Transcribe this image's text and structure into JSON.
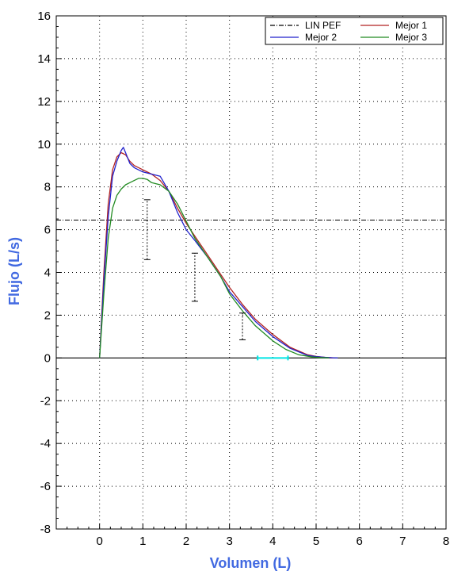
{
  "chart_data": {
    "type": "line",
    "title": "",
    "xlabel": "Volumen (L)",
    "ylabel": "Flujo (L/s)",
    "xlim": [
      -1,
      8
    ],
    "ylim": [
      -8,
      16
    ],
    "x_ticks": [
      0,
      1,
      2,
      3,
      4,
      5,
      6,
      7,
      8
    ],
    "y_ticks": [
      -8,
      -6,
      -4,
      -2,
      0,
      2,
      4,
      6,
      8,
      10,
      12,
      14,
      16
    ],
    "grid": true,
    "legend_position": "top-right",
    "colors": {
      "axis_title": "#4169e1",
      "grid": "#000000",
      "mejor1": "#b22222",
      "mejor2": "#2222cc",
      "mejor3": "#228b22",
      "lin_pef": "#000000",
      "error_bar": "#000000",
      "range_marker": "#00e5e5"
    },
    "series": [
      {
        "name": "LIN PEF",
        "style": "dash-dot",
        "x": [
          -1,
          8
        ],
        "y": [
          6.45,
          6.45
        ]
      },
      {
        "name": "Mejor 1",
        "x": [
          0.0,
          0.05,
          0.1,
          0.2,
          0.3,
          0.4,
          0.5,
          0.6,
          0.7,
          0.8,
          1.0,
          1.2,
          1.4,
          1.6,
          1.8,
          2.0,
          2.2,
          2.5,
          2.8,
          3.0,
          3.3,
          3.6,
          4.0,
          4.4,
          4.8,
          5.0,
          5.2,
          5.4
        ],
        "y": [
          0.0,
          2.0,
          4.0,
          7.2,
          8.8,
          9.4,
          9.6,
          9.5,
          9.2,
          9.0,
          8.8,
          8.6,
          8.3,
          7.8,
          7.0,
          6.3,
          5.7,
          4.8,
          3.9,
          3.3,
          2.5,
          1.8,
          1.1,
          0.5,
          0.15,
          0.07,
          0.03,
          0.0
        ]
      },
      {
        "name": "Mejor 2",
        "x": [
          0.0,
          0.05,
          0.1,
          0.2,
          0.3,
          0.4,
          0.5,
          0.55,
          0.6,
          0.7,
          0.8,
          1.0,
          1.2,
          1.4,
          1.6,
          1.8,
          2.0,
          2.2,
          2.5,
          2.8,
          3.0,
          3.3,
          3.6,
          4.0,
          4.4,
          4.8,
          5.0,
          5.2,
          5.4,
          5.5
        ],
        "y": [
          0.0,
          1.8,
          3.6,
          6.6,
          8.5,
          9.2,
          9.7,
          9.85,
          9.6,
          9.1,
          8.9,
          8.7,
          8.6,
          8.5,
          7.8,
          6.8,
          6.0,
          5.5,
          4.7,
          3.8,
          3.1,
          2.4,
          1.7,
          1.0,
          0.45,
          0.12,
          0.06,
          0.03,
          0.01,
          0.0
        ]
      },
      {
        "name": "Mejor 3",
        "x": [
          0.0,
          0.05,
          0.1,
          0.2,
          0.3,
          0.4,
          0.5,
          0.6,
          0.7,
          0.8,
          0.9,
          1.0,
          1.1,
          1.2,
          1.4,
          1.6,
          1.8,
          2.0,
          2.2,
          2.5,
          2.8,
          3.0,
          3.3,
          3.6,
          4.0,
          4.3,
          4.6,
          4.9,
          5.1,
          5.3
        ],
        "y": [
          0.0,
          1.5,
          3.0,
          5.6,
          7.0,
          7.6,
          7.9,
          8.1,
          8.2,
          8.3,
          8.4,
          8.4,
          8.35,
          8.2,
          8.1,
          7.8,
          7.2,
          6.4,
          5.6,
          4.7,
          3.8,
          3.0,
          2.2,
          1.5,
          0.8,
          0.4,
          0.15,
          0.05,
          0.02,
          0.0
        ]
      }
    ],
    "error_bars": [
      {
        "x": 1.1,
        "low": 4.6,
        "high": 7.4
      },
      {
        "x": 2.2,
        "low": 2.65,
        "high": 4.9
      },
      {
        "x": 3.3,
        "low": 0.85,
        "high": 2.1
      }
    ],
    "range_marker": {
      "x_start": 3.65,
      "x_end": 4.35,
      "y": 0
    },
    "legend": {
      "rows": [
        [
          "LIN PEF",
          "Mejor 1"
        ],
        [
          "Mejor 2",
          "Mejor 3"
        ]
      ]
    }
  }
}
